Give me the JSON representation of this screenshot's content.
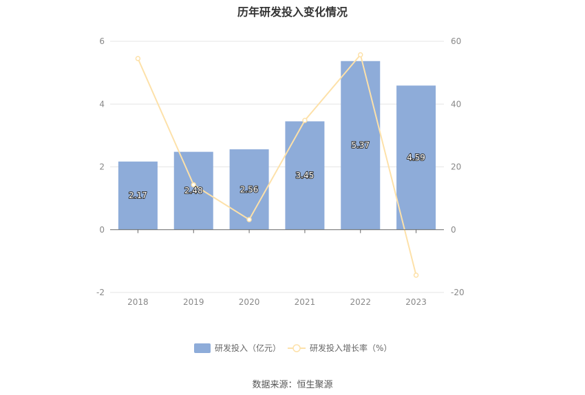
{
  "chart_data": {
    "type": "bar",
    "title": "历年研发投入变化情况",
    "categories": [
      "2018",
      "2019",
      "2020",
      "2021",
      "2022",
      "2023"
    ],
    "series": [
      {
        "name": "研发投入（亿元）",
        "type": "bar",
        "axis": "left",
        "values": [
          2.17,
          2.48,
          2.56,
          3.45,
          5.37,
          4.59
        ],
        "labels": [
          "2.17",
          "2.48",
          "2.56",
          "3.45",
          "5.37",
          "4.59"
        ],
        "color": "#8eacd9"
      },
      {
        "name": "研发投入增长率（%）",
        "type": "line",
        "axis": "right",
        "values": [
          54.5,
          14.3,
          3.2,
          34.8,
          55.7,
          -14.5
        ],
        "color": "#fde1a9"
      }
    ],
    "y_left": {
      "min": -2,
      "max": 6,
      "ticks": [
        "-2",
        "0",
        "2",
        "4",
        "6"
      ]
    },
    "y_right": {
      "min": -20,
      "max": 60,
      "ticks": [
        "-20",
        "0",
        "20",
        "40",
        "60"
      ]
    },
    "grid": true,
    "legend_position": "bottom"
  },
  "source": "数据来源：恒生聚源"
}
